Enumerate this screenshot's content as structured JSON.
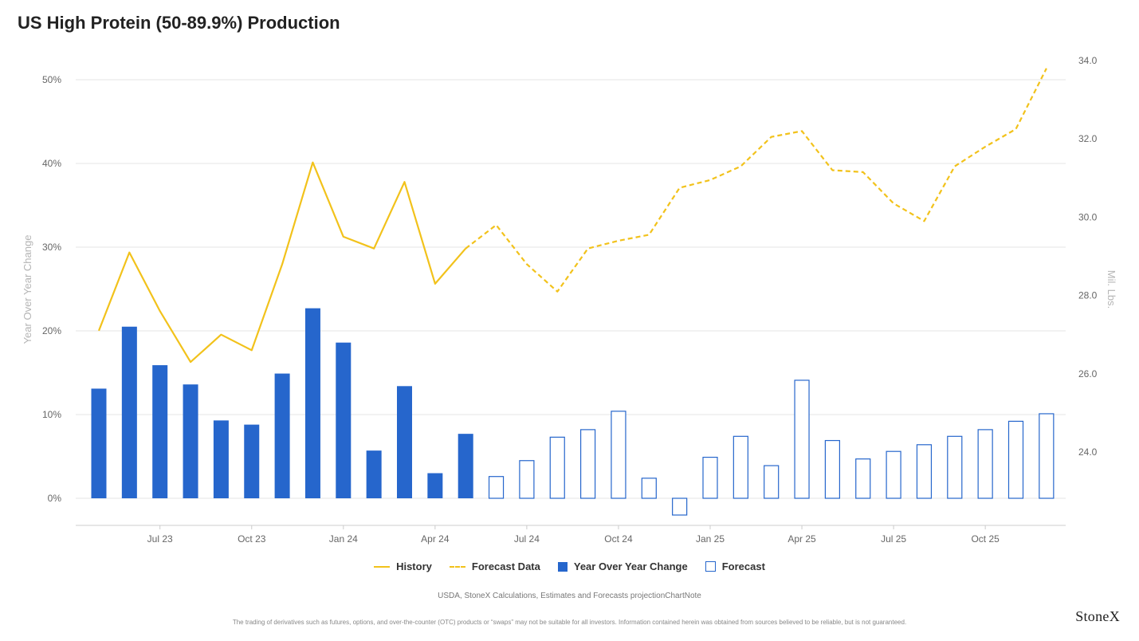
{
  "title": "US High Protein (50-89.9%) Production",
  "chart_data": {
    "type": "bar",
    "x_tick_labels": [
      "Jul 23",
      "Oct 23",
      "Jan 24",
      "Apr 24",
      "Jul 24",
      "Oct 24",
      "Jan 25",
      "Apr 25",
      "Jul 25",
      "Oct 25"
    ],
    "left_axis": {
      "label": "Year Over Year Change",
      "ticks": [
        "0%",
        "10%",
        "20%",
        "30%",
        "40%",
        "50%"
      ],
      "range": [
        0,
        50
      ]
    },
    "right_axis": {
      "label": "Mil. Lbs.",
      "ticks": [
        "24.0",
        "26.0",
        "28.0",
        "30.0",
        "32.0",
        "34.0"
      ],
      "range": [
        24,
        34
      ]
    },
    "months": [
      "May 23",
      "Jun 23",
      "Jul 23",
      "Aug 23",
      "Sep 23",
      "Oct 23",
      "Nov 23",
      "Dec 23",
      "Jan 24",
      "Feb 24",
      "Mar 24",
      "Apr 24",
      "May 24",
      "Jun 24",
      "Jul 24",
      "Aug 24",
      "Sep 24",
      "Oct 24",
      "Nov 24",
      "Dec 24",
      "Jan 25",
      "Feb 25",
      "Mar 25",
      "Apr 25",
      "May 25",
      "Jun 25",
      "Jul 25",
      "Aug 25",
      "Sep 25",
      "Oct 25",
      "Nov 25",
      "Dec 25"
    ],
    "series": [
      {
        "name": "History",
        "kind": "line",
        "axis": "right",
        "values": [
          27.1,
          29.1,
          27.6,
          26.3,
          27.0,
          26.6,
          28.8,
          31.4,
          29.5,
          29.2,
          30.9,
          28.3,
          29.2
        ]
      },
      {
        "name": "Forecast Data",
        "kind": "dashed-line",
        "axis": "right",
        "start_index": 12,
        "values": [
          29.2,
          29.8,
          28.8,
          28.1,
          29.2,
          29.4,
          29.55,
          30.75,
          30.95,
          31.3,
          32.05,
          32.2,
          31.2,
          31.15,
          30.35,
          29.9,
          31.3,
          31.8,
          32.25,
          33.8
        ]
      },
      {
        "name": "Year Over Year Change",
        "kind": "bar",
        "axis": "left",
        "values": [
          13.1,
          20.5,
          15.9,
          13.6,
          9.3,
          8.8,
          14.9,
          22.7,
          18.6,
          5.7,
          13.4,
          3.0,
          7.7
        ]
      },
      {
        "name": "Forecast",
        "kind": "open-bar",
        "axis": "left",
        "start_index": 13,
        "values": [
          2.6,
          4.5,
          7.3,
          8.2,
          10.4,
          2.4,
          -2.0,
          4.9,
          7.4,
          3.9,
          14.1,
          6.9,
          4.7,
          5.6,
          6.4,
          7.4,
          8.2,
          9.2,
          10.1
        ]
      }
    ],
    "grid": true,
    "legend_position": "bottom",
    "colors": {
      "line": "#f2c21b",
      "bar": "#2666cc",
      "grid": "#e6e6e6",
      "axis": "#cccccc"
    }
  },
  "legend": {
    "history": "History",
    "forecast_data": "Forecast Data",
    "yoy": "Year Over Year Change",
    "forecast": "Forecast"
  },
  "source_note": "USDA, StoneX Calculations, Estimates and Forecasts  projectionChartNote",
  "disclaimer": "The trading of derivatives such as futures, options, and over-the-counter (OTC) products or “swaps” may not be suitable for all investors. Information contained herein was obtained from sources believed to be reliable, but is not guaranteed.",
  "brand": "StoneX"
}
